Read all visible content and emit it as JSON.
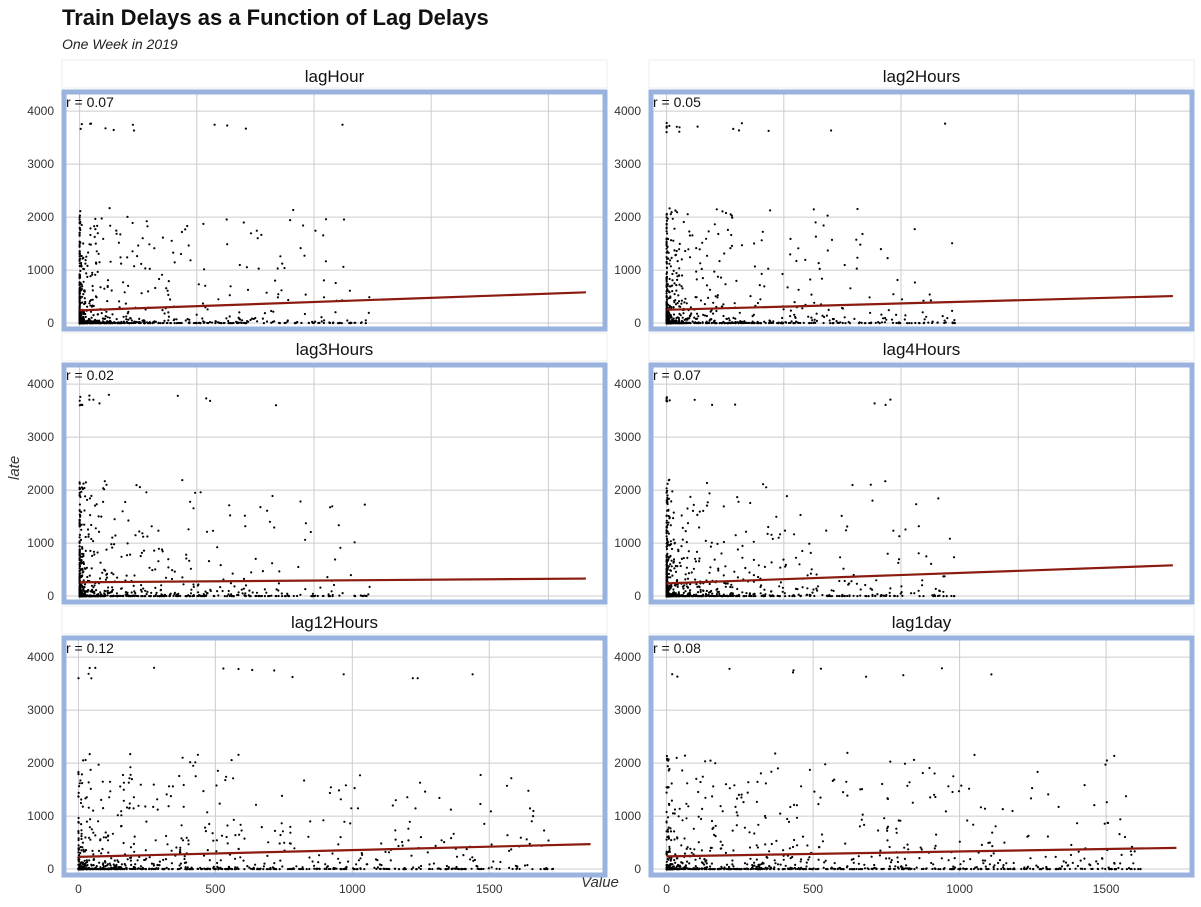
{
  "title": "Train Delays as a Function of Lag Delays",
  "subtitle": "One Week in 2019",
  "xlabel": "Value",
  "ylabel": "late",
  "colors": {
    "points": "#000000",
    "trend": "#8b1a10",
    "panel_border": "#9ab3de",
    "grid": "#cccccc"
  },
  "chart_data": [
    {
      "type": "scatter",
      "facet": "lagHour",
      "r_label": "r = 0.07",
      "xlim": [
        -150,
        4500
      ],
      "ylim": [
        -150,
        4400
      ],
      "xticks": [
        0,
        1000,
        2000,
        3000,
        4000
      ],
      "yticks": [
        0,
        1000,
        2000,
        3000,
        4000
      ],
      "trend": {
        "x": [
          0,
          4320
        ],
        "y": [
          240,
          580
        ]
      }
    },
    {
      "type": "scatter",
      "facet": "lag2Hours",
      "r_label": "r = 0.05",
      "xlim": [
        -150,
        4500
      ],
      "ylim": [
        -150,
        4400
      ],
      "xticks": [
        0,
        1000,
        2000,
        3000,
        4000
      ],
      "yticks": [
        0,
        1000,
        2000,
        3000,
        4000
      ],
      "trend": {
        "x": [
          0,
          4320
        ],
        "y": [
          250,
          510
        ]
      }
    },
    {
      "type": "scatter",
      "facet": "lag3Hours",
      "r_label": "r = 0.02",
      "xlim": [
        -150,
        4500
      ],
      "ylim": [
        -150,
        4400
      ],
      "xticks": [
        0,
        1000,
        2000,
        3000,
        4000
      ],
      "yticks": [
        0,
        1000,
        2000,
        3000,
        4000
      ],
      "trend": {
        "x": [
          0,
          4320
        ],
        "y": [
          260,
          330
        ]
      }
    },
    {
      "type": "scatter",
      "facet": "lag4Hours",
      "r_label": "r = 0.07",
      "xlim": [
        -150,
        4500
      ],
      "ylim": [
        -150,
        4400
      ],
      "xticks": [
        0,
        1000,
        2000,
        3000,
        4000
      ],
      "yticks": [
        0,
        1000,
        2000,
        3000,
        4000
      ],
      "trend": {
        "x": [
          0,
          4320
        ],
        "y": [
          240,
          580
        ]
      }
    },
    {
      "type": "scatter",
      "facet": "lag12Hours",
      "r_label": "r = 0.12",
      "xlim": [
        -60,
        1930
      ],
      "ylim": [
        -150,
        4400
      ],
      "xticks": [
        0,
        500,
        1000,
        1500
      ],
      "yticks": [
        0,
        1000,
        2000,
        3000,
        4000
      ],
      "trend": {
        "x": [
          0,
          1870
        ],
        "y": [
          230,
          470
        ]
      }
    },
    {
      "type": "scatter",
      "facet": "lag1day",
      "r_label": "r = 0.08",
      "xlim": [
        -60,
        1800
      ],
      "ylim": [
        -150,
        4400
      ],
      "xticks": [
        0,
        500,
        1000,
        1500
      ],
      "yticks": [
        0,
        1000,
        2000,
        3000,
        4000
      ],
      "trend": {
        "x": [
          0,
          1740
        ],
        "y": [
          240,
          400
        ]
      }
    }
  ]
}
